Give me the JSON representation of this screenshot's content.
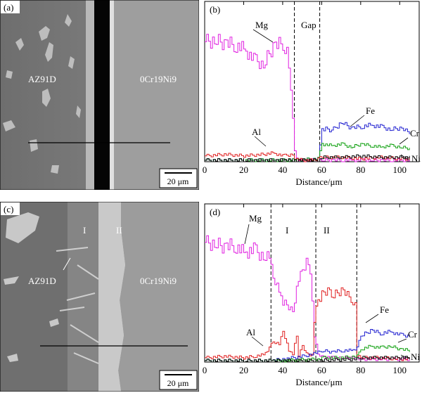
{
  "figure": {
    "panel_a": {
      "letter": "(a)",
      "left_material": "AZ91D",
      "right_material": "0Cr19Ni9",
      "scale_bar": "20 μm"
    },
    "panel_c": {
      "letter": "(c)",
      "left_material": "AZ91D",
      "right_material": "0Cr19Ni9",
      "zone_1": "I",
      "zone_2": "II",
      "scale_bar": "20 μm"
    }
  },
  "chart_data": [
    {
      "type": "line",
      "panel": "(b)",
      "xlabel": "Distance/μm",
      "xlim": [
        0,
        110
      ],
      "x_ticks": [
        "0",
        "20",
        "40",
        "60",
        "80",
        "100"
      ],
      "y_ticks": [],
      "region_labels": [
        "Gap"
      ],
      "boundaries": [
        46,
        59
      ],
      "series": [
        {
          "name": "Mg",
          "color": "#e020e0",
          "x": [
            0,
            5,
            10,
            15,
            20,
            25,
            30,
            35,
            40,
            42,
            44,
            45,
            46,
            47,
            50,
            55,
            60,
            65,
            70,
            75,
            80,
            85,
            90,
            95,
            100,
            105
          ],
          "y": [
            82,
            83,
            81,
            80,
            77,
            70,
            66,
            79,
            81,
            76,
            52,
            28,
            8,
            2,
            1,
            1,
            1,
            1,
            1,
            1,
            1,
            1,
            1,
            1,
            1,
            1
          ]
        },
        {
          "name": "Fe",
          "color": "#2020d0",
          "x": [
            0,
            10,
            20,
            30,
            40,
            46,
            58,
            59,
            60,
            62,
            65,
            70,
            75,
            80,
            85,
            90,
            95,
            100,
            105
          ],
          "y": [
            1,
            1,
            1,
            1,
            1,
            1,
            2,
            12,
            22,
            23,
            21,
            27,
            23,
            24,
            25,
            24,
            22,
            23,
            20
          ]
        },
        {
          "name": "Cr",
          "color": "#10a010",
          "x": [
            0,
            10,
            20,
            30,
            40,
            46,
            58,
            59,
            60,
            65,
            70,
            75,
            80,
            85,
            90,
            95,
            100,
            105
          ],
          "y": [
            1,
            1,
            1,
            1,
            1,
            1,
            2,
            8,
            12,
            11,
            12,
            10,
            12,
            11,
            10,
            11,
            10,
            9
          ]
        },
        {
          "name": "Al",
          "color": "#e02020",
          "x": [
            0,
            10,
            20,
            30,
            35,
            40,
            45,
            46,
            50,
            55,
            58,
            60,
            70,
            80,
            90,
            100,
            105
          ],
          "y": [
            4,
            5,
            4,
            5,
            6,
            4,
            5,
            2,
            1,
            1,
            2,
            3,
            3,
            2,
            3,
            2,
            2
          ]
        },
        {
          "name": "Ni",
          "color": "#000000",
          "x": [
            0,
            20,
            40,
            46,
            58,
            60,
            70,
            80,
            90,
            100,
            105
          ],
          "y": [
            1,
            1,
            1,
            1,
            1,
            3,
            3,
            4,
            3,
            3,
            3
          ]
        }
      ]
    },
    {
      "type": "line",
      "panel": "(d)",
      "xlabel": "Distance/μm",
      "xlim": [
        0,
        110
      ],
      "x_ticks": [
        "0",
        "20",
        "40",
        "60",
        "80",
        "100"
      ],
      "y_ticks": [],
      "region_labels": [
        "I",
        "II"
      ],
      "boundaries": [
        34,
        57,
        78
      ],
      "series": [
        {
          "name": "Mg",
          "color": "#e020e0",
          "x": [
            0,
            5,
            10,
            15,
            20,
            25,
            30,
            33,
            35,
            38,
            40,
            45,
            48,
            50,
            52,
            54,
            55,
            56,
            58,
            60,
            65,
            70,
            75,
            78,
            80,
            90,
            100,
            105
          ],
          "y": [
            83,
            82,
            80,
            81,
            76,
            78,
            73,
            72,
            60,
            50,
            42,
            36,
            56,
            66,
            70,
            65,
            40,
            18,
            6,
            4,
            3,
            3,
            3,
            3,
            2,
            2,
            2,
            2
          ]
        },
        {
          "name": "Al",
          "color": "#e02020",
          "x": [
            0,
            10,
            20,
            25,
            30,
            33,
            35,
            38,
            40,
            43,
            45,
            47,
            48,
            50,
            52,
            55,
            56,
            57,
            58,
            60,
            63,
            65,
            70,
            75,
            77,
            78,
            80,
            90,
            100,
            105
          ],
          "y": [
            3,
            4,
            3,
            4,
            5,
            10,
            14,
            12,
            22,
            8,
            6,
            18,
            4,
            12,
            6,
            5,
            26,
            40,
            42,
            48,
            50,
            45,
            50,
            44,
            40,
            4,
            3,
            3,
            2,
            2
          ]
        },
        {
          "name": "Fe",
          "color": "#2020d0",
          "x": [
            0,
            20,
            34,
            40,
            50,
            57,
            60,
            65,
            70,
            75,
            78,
            80,
            85,
            90,
            95,
            100,
            105
          ],
          "y": [
            1,
            1,
            1,
            2,
            4,
            6,
            8,
            7,
            8,
            8,
            10,
            18,
            22,
            20,
            21,
            19,
            18
          ]
        },
        {
          "name": "Cr",
          "color": "#10a010",
          "x": [
            0,
            20,
            34,
            40,
            57,
            60,
            70,
            78,
            80,
            85,
            90,
            95,
            100,
            105
          ],
          "y": [
            1,
            1,
            1,
            1,
            2,
            3,
            3,
            4,
            9,
            11,
            10,
            11,
            9,
            8
          ]
        },
        {
          "name": "Ni",
          "color": "#000000",
          "x": [
            0,
            20,
            34,
            57,
            78,
            80,
            90,
            100,
            105
          ],
          "y": [
            1,
            1,
            1,
            1,
            2,
            3,
            3,
            3,
            3
          ]
        }
      ]
    }
  ]
}
